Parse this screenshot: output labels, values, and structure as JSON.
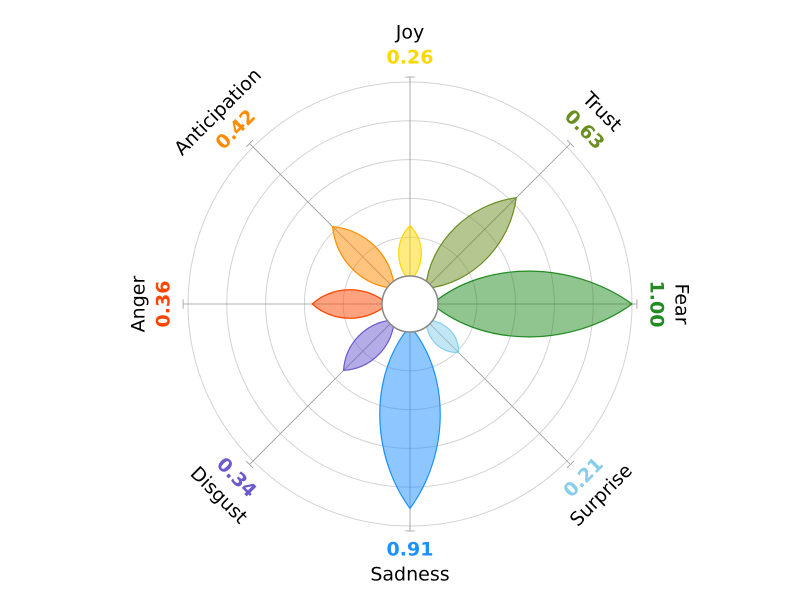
{
  "chart_data": {
    "type": "plutchik",
    "categories": [
      "Joy",
      "Trust",
      "Fear",
      "Surprise",
      "Sadness",
      "Disgust",
      "Anger",
      "Anticipation"
    ],
    "values": [
      0.26,
      0.63,
      1.0,
      0.21,
      0.91,
      0.34,
      0.36,
      0.42
    ],
    "value_labels": [
      "0.26",
      "0.63",
      "1.00",
      "0.21",
      "0.91",
      "0.34",
      "0.36",
      "0.42"
    ],
    "colors": [
      "#FFD700",
      "#6B8E23",
      "#228B22",
      "#87CEEB",
      "#1E90FF",
      "#6A5ACD",
      "#FF4500",
      "#FF8C00"
    ],
    "rlim": [
      0,
      1
    ],
    "rticks": [
      0.2,
      0.4,
      0.6,
      0.8,
      1.0
    ],
    "grid": true
  }
}
